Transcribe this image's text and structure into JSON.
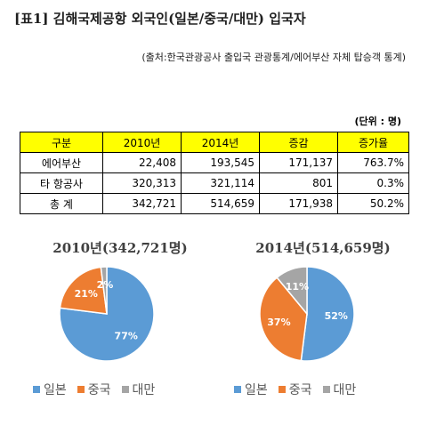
{
  "title": "[표1] 김해국제공항 외국인(일본/중국/대만) 입국자",
  "source": "(출처:한국관광공사 출입국 관광통계/에어부산 자체 탑승객 통계)",
  "unit": "(단위 : 명)",
  "table": {
    "headers": [
      "구분",
      "2010년",
      "2014년",
      "증감",
      "증가율"
    ],
    "rows": [
      [
        "에어부산",
        "22,408",
        "193,545",
        "171,137",
        "763.7%"
      ],
      [
        "타 항공사",
        "320,313",
        "321,114",
        "801",
        "0.3%"
      ],
      [
        "총 계",
        "342,721",
        "514,659",
        "171,938",
        "50.2%"
      ]
    ]
  },
  "colors": {
    "japan": "#5b9bd5",
    "china": "#ed7d31",
    "taiwan": "#a5a5a5",
    "header_bg": "#ffff00"
  },
  "chart_data": [
    {
      "type": "pie",
      "title": "2010년(342,721명)",
      "categories": [
        "일본",
        "중국",
        "대만"
      ],
      "values": [
        77,
        21,
        2
      ],
      "labels": [
        "77%",
        "21%",
        "2%"
      ],
      "legend": "bottom"
    },
    {
      "type": "pie",
      "title": "2014년(514,659명)",
      "categories": [
        "일본",
        "중국",
        "대만"
      ],
      "values": [
        52,
        37,
        11
      ],
      "labels": [
        "52%",
        "37%",
        "11%"
      ],
      "legend": "bottom"
    }
  ]
}
